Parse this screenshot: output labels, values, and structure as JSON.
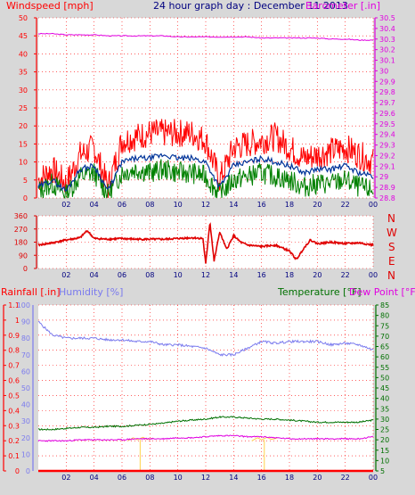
{
  "colors": {
    "background": "#d8d8d8",
    "plot_bg": "#ffffff",
    "grid": "#ff0000",
    "wind": "#ff0000",
    "gust": "#ff0000",
    "wind_avg": "#003399",
    "wind_speed": "#008000",
    "barometer": "#e000e0",
    "direction": "#e00000",
    "humidity": "#7b7bee",
    "temperature": "#007000",
    "dewpoint": "#e000e0",
    "rainfall": "#ff0000",
    "rain_marker": "#ffd24a",
    "title": "#000080"
  },
  "title": "24 hour graph day : December 11 2013",
  "x_tick_labels": [
    "02",
    "04",
    "06",
    "08",
    "10",
    "12",
    "14",
    "16",
    "18",
    "20",
    "22",
    "00"
  ],
  "chart_data": [
    {
      "type": "line",
      "name": "wind-barometer",
      "left_axis_label": "Windspeed [mph]",
      "right_axis_label": "Barometer [.in]",
      "left_ylim": [
        0,
        50
      ],
      "left_ticks": [
        "0",
        "5",
        "10",
        "15",
        "20",
        "25",
        "30",
        "35",
        "40",
        "45",
        "50"
      ],
      "right_ylim": [
        28.8,
        30.5
      ],
      "right_ticks": [
        "28.8",
        "28.9",
        "29",
        "29.1",
        "29.2",
        "29.3",
        "29.4",
        "29.5",
        "29.6",
        "29.7",
        "29.8",
        "29.9",
        "30",
        "30.1",
        "30.2",
        "30.3",
        "30.4",
        "30.5"
      ],
      "x": [
        0,
        1,
        2,
        3,
        4,
        5,
        6,
        7,
        8,
        9,
        10,
        11,
        12,
        13,
        14,
        15,
        16,
        17,
        18,
        19,
        20,
        21,
        22,
        23,
        24
      ],
      "series": [
        {
          "key": "gust",
          "values": [
            5,
            8,
            4,
            12,
            14,
            3,
            16,
            17,
            18,
            18,
            18,
            18,
            16,
            5,
            14,
            15,
            16,
            17,
            14,
            11,
            12,
            13,
            14,
            12,
            10
          ]
        },
        {
          "key": "wind_avg",
          "values": [
            3,
            5,
            2,
            8,
            9,
            2,
            10,
            11,
            11,
            12,
            11,
            11,
            10,
            3,
            9,
            10,
            11,
            10,
            9,
            7,
            8,
            8,
            9,
            7,
            6
          ]
        },
        {
          "key": "wind_speed",
          "values": [
            2,
            4,
            1,
            6,
            7,
            1,
            7,
            8,
            7,
            8,
            7,
            7,
            6,
            1,
            5,
            6,
            7,
            6,
            5,
            3,
            4,
            4,
            5,
            3,
            2
          ]
        },
        {
          "key": "barometer",
          "values": [
            30.35,
            30.35,
            30.34,
            30.34,
            30.34,
            30.33,
            30.33,
            30.33,
            30.33,
            30.33,
            30.32,
            30.32,
            30.32,
            30.32,
            30.32,
            30.32,
            30.31,
            30.31,
            30.31,
            30.31,
            30.31,
            30.3,
            30.3,
            30.29,
            30.29
          ]
        }
      ]
    },
    {
      "type": "line",
      "name": "wind-direction",
      "ylim": [
        0,
        360
      ],
      "left_ticks": [
        "0",
        "90",
        "180",
        "270",
        "360"
      ],
      "right_labels": [
        "N",
        "W",
        "S",
        "E",
        "N"
      ],
      "x": [
        0,
        1,
        2,
        3,
        3.5,
        4,
        5,
        6,
        7,
        8,
        9,
        10,
        11,
        11.8,
        12,
        12.3,
        12.6,
        13,
        13.5,
        14,
        14.5,
        15,
        16,
        17,
        18,
        18.5,
        19,
        19.5,
        20,
        21,
        22,
        23,
        24
      ],
      "values": [
        160,
        175,
        195,
        210,
        260,
        205,
        200,
        205,
        200,
        200,
        200,
        205,
        210,
        205,
        30,
        320,
        50,
        250,
        130,
        225,
        180,
        160,
        150,
        160,
        120,
        60,
        135,
        195,
        170,
        180,
        170,
        175,
        160
      ]
    },
    {
      "type": "line",
      "name": "humidity-temperature",
      "left_axis_label": "Rainfall [.in]",
      "humidity_axis_label": "Humidity [%]",
      "right_axis_label": "Temperature [°F]",
      "dewpoint_axis_label": "Dew Point [°F]",
      "rain_ylim": [
        0,
        1.1
      ],
      "rain_ticks": [
        "0",
        "0.1",
        "0.2",
        "0.3",
        "0.4",
        "0.5",
        "0.6",
        "0.7",
        "0.8",
        "0.9",
        "1",
        "1.1"
      ],
      "humidity_ylim": [
        0,
        100
      ],
      "humidity_ticks": [
        "0",
        "10",
        "20",
        "30",
        "40",
        "50",
        "60",
        "70",
        "80",
        "90",
        "100"
      ],
      "temp_ylim": [
        5,
        85
      ],
      "temp_ticks": [
        "5",
        "10",
        "15",
        "20",
        "25",
        "30",
        "35",
        "40",
        "45",
        "50",
        "55",
        "60",
        "65",
        "70",
        "75",
        "80",
        "85"
      ],
      "x": [
        0,
        1,
        2,
        3,
        4,
        5,
        6,
        7,
        8,
        9,
        10,
        11,
        12,
        13,
        14,
        15,
        16,
        17,
        18,
        19,
        20,
        21,
        22,
        23,
        24
      ],
      "series": [
        {
          "key": "humidity",
          "values": [
            90,
            82,
            80,
            80,
            80,
            79,
            79,
            78,
            78,
            76,
            76,
            75,
            74,
            70,
            70,
            74,
            78,
            77,
            78,
            78,
            78,
            76,
            77,
            76,
            73
          ]
        },
        {
          "key": "temperature",
          "values": [
            25,
            25,
            25.5,
            26,
            26,
            26.5,
            26.5,
            27,
            27.5,
            28,
            29,
            29.5,
            30,
            31,
            31,
            30.5,
            30,
            30,
            29.5,
            29,
            28.5,
            28.5,
            28.5,
            28.5,
            29.5
          ]
        },
        {
          "key": "dewpoint",
          "values": [
            19.5,
            19.5,
            19.5,
            20,
            20,
            20,
            20,
            20.5,
            20.5,
            20.5,
            21,
            21,
            21.5,
            22,
            22,
            21.5,
            21.5,
            21,
            20.5,
            20.5,
            20.5,
            20.5,
            20.5,
            20.5,
            21.5
          ]
        },
        {
          "key": "rainfall",
          "values": [
            0,
            0,
            0,
            0,
            0,
            0,
            0,
            0,
            0,
            0,
            0,
            0,
            0,
            0,
            0,
            0,
            0,
            0,
            0,
            0,
            0,
            0,
            0,
            0,
            0
          ]
        }
      ],
      "rain_marker_hours": [
        7.3,
        16.2
      ]
    }
  ]
}
